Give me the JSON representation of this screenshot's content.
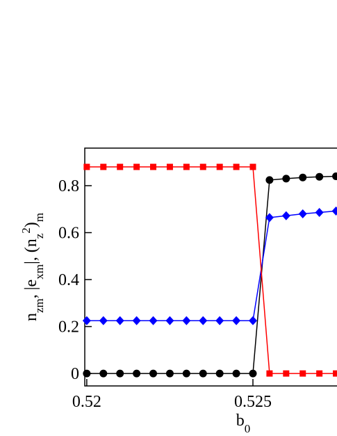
{
  "chart_data": {
    "type": "line",
    "xlabel": [
      {
        "text": "b",
        "style": "base"
      },
      {
        "text": "0",
        "style": "sub"
      }
    ],
    "ylabel": [
      {
        "text": "n",
        "style": "base"
      },
      {
        "text": "zm",
        "style": "sub"
      },
      {
        "text": ", |e",
        "style": "base"
      },
      {
        "text": "xm",
        "style": "sub"
      },
      {
        "text": "|, (n",
        "style": "base"
      },
      {
        "text": "z",
        "style": "sub"
      },
      {
        "text": "2",
        "style": "sup"
      },
      {
        "text": ")",
        "style": "base"
      },
      {
        "text": "m",
        "style": "sub"
      }
    ],
    "x": [
      0.52,
      0.5205,
      0.521,
      0.5215,
      0.522,
      0.5225,
      0.523,
      0.5235,
      0.524,
      0.5245,
      0.525,
      0.5255,
      0.526,
      0.5265,
      0.527,
      0.5275
    ],
    "series": [
      {
        "color": "#000000",
        "marker": "circle",
        "values": [
          0,
          0,
          0,
          0,
          0,
          0,
          0,
          0,
          0,
          0,
          0,
          0.824,
          0.83,
          0.835,
          0.838,
          0.84
        ]
      },
      {
        "color": "#0000ff",
        "marker": "diamond",
        "values": [
          0.225,
          0.225,
          0.225,
          0.225,
          0.225,
          0.225,
          0.225,
          0.225,
          0.225,
          0.225,
          0.225,
          0.664,
          0.672,
          0.68,
          0.686,
          0.692
        ]
      },
      {
        "color": "#ff0000",
        "marker": "square",
        "values": [
          0.88,
          0.88,
          0.88,
          0.88,
          0.88,
          0.88,
          0.88,
          0.88,
          0.88,
          0.88,
          0.88,
          0,
          0,
          0,
          0,
          0
        ]
      }
    ],
    "xlim": [
      0.51994,
      0.52753
    ],
    "ylim": [
      -0.053,
      0.96
    ],
    "xticks": [
      0.52,
      0.525
    ],
    "yticks": [
      0,
      0.2,
      0.4,
      0.6,
      0.8
    ]
  }
}
